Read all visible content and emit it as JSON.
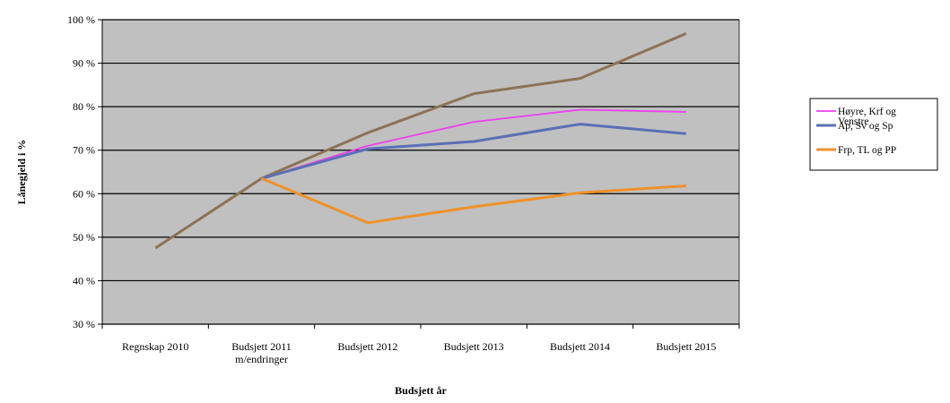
{
  "chart_data": {
    "type": "line",
    "title": "",
    "xlabel": "Budsjett år",
    "ylabel": "Lånegjeld i %",
    "categories": [
      "Regnskap 2010",
      "Budsjett 2011 m/endringer",
      "Budsjett 2012",
      "Budsjett 2013",
      "Budsjett 2014",
      "Budsjett 2015"
    ],
    "category_lines": [
      [
        "Regnskap 2010"
      ],
      [
        "Budsjett 2011",
        "m/endringer"
      ],
      [
        "Budsjett 2012"
      ],
      [
        "Budsjett 2013"
      ],
      [
        "Budsjett 2014"
      ],
      [
        "Budsjett 2015"
      ]
    ],
    "ylim": [
      30,
      100
    ],
    "yticks": [
      30,
      40,
      50,
      60,
      70,
      80,
      90,
      100
    ],
    "ytick_labels": [
      "30 %",
      "40 %",
      "50 %",
      "60 %",
      "70 %",
      "80 %",
      "90 %",
      "100 %"
    ],
    "grid": true,
    "plot_background": "#c0c0c0",
    "legend_position": "right",
    "series": [
      {
        "name": "",
        "color": "#8b7355",
        "values": [
          47.5,
          63.5,
          74,
          83,
          86.5,
          96.8
        ]
      },
      {
        "name": "Høyre, Krf og Venstre",
        "color": "#ee3ff0",
        "values": [
          null,
          63.5,
          71,
          76.5,
          79.3,
          78.8
        ]
      },
      {
        "name": "Ap, Sv og Sp",
        "color": "#5b6fb5",
        "values": [
          null,
          63.5,
          70.3,
          72,
          76,
          73.8
        ]
      },
      {
        "name": "Frp, TL og PP",
        "color": "#f0912a",
        "values": [
          null,
          63.5,
          53.3,
          57,
          60.2,
          61.8
        ]
      }
    ],
    "legend_entries": [
      {
        "lines": [
          "Høyre, Krf og",
          "Venstre"
        ],
        "color": "#ee3ff0"
      },
      {
        "lines": [
          "Ap, Sv og Sp"
        ],
        "color": "#5b6fb5"
      },
      {
        "lines": [
          "Frp, TL og PP"
        ],
        "color": "#f0912a"
      }
    ]
  }
}
